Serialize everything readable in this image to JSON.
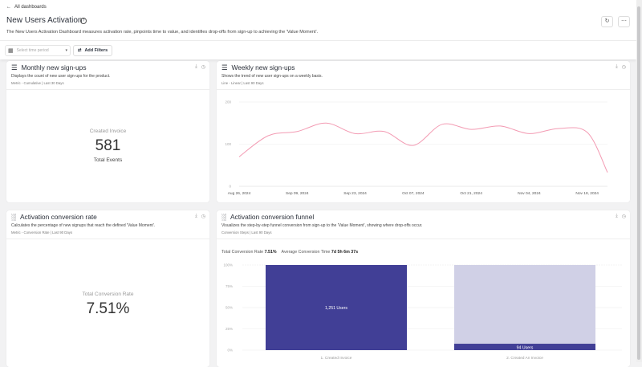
{
  "header": {
    "back_label": "All dashboards",
    "title": "New Users Activation",
    "description": "The New Users Activation Dashboard measures activation rate, pinpoints time to value, and identifies drop-offs from sign-up to achieving the 'Value Moment'."
  },
  "filters": {
    "time_placeholder": "Select time period",
    "add_filters_label": "Add Filters"
  },
  "cards": {
    "monthly": {
      "title": "Monthly new sign-ups",
      "description": "Displays the count of new user sign-ups for the product.",
      "meta": "Metric - Cumulative | Last 30 Days",
      "metric_label": "Created Invoice",
      "metric_value": "581",
      "metric_sub": "Total Events"
    },
    "weekly": {
      "title": "Weekly new sign-ups",
      "description": "Shows the trend of new user sign-ups on a weekly basis.",
      "meta": "Line - Linear | Last 90 Days"
    },
    "rate": {
      "title": "Activation conversion rate",
      "description": "Calculates the percentage of new signups that reach the defined 'Value Moment'.",
      "meta": "Metric - Conversion Rate | Last 90 Days",
      "metric_label": "Total Conversion Rate",
      "metric_value": "7.51%"
    },
    "funnel": {
      "title": "Activation conversion funnel",
      "description": "Visualizes the step-by-step funnel conversion from sign-up to the 'Value Moment', showing where drop-offs occur.",
      "meta": "Conversion Steps | Last 90 Days",
      "total_label": "Total Conversion Rate",
      "total_value": "7.51%",
      "avg_label": "Average Conversion Time",
      "avg_value": "7d 5h 6m 37s"
    }
  },
  "chart_data": [
    {
      "type": "line",
      "title": "Weekly new sign-ups",
      "ylim": [
        0,
        200
      ],
      "yticks": [
        "0",
        "100",
        "200"
      ],
      "grid": true,
      "color": "#f39bb3",
      "x": [
        "Aug 26, 2024",
        "Sep 02, 2024",
        "Sep 09, 2024",
        "Sep 16, 2024",
        "Sep 23, 2024",
        "Sep 30, 2024",
        "Oct 07, 2024",
        "Oct 14, 2024",
        "Oct 21, 2024",
        "Oct 28, 2024",
        "Nov 04, 2024",
        "Nov 11, 2024",
        "Nov 18, 2024",
        "Nov 25, 2024"
      ],
      "xticks": [
        "Aug 26, 2024",
        "Sep 09, 2024",
        "Sep 23, 2024",
        "Oct 07, 2024",
        "Oct 21, 2024",
        "Nov 04, 2024",
        "Nov 18, 2024"
      ],
      "values": [
        70,
        120,
        130,
        150,
        125,
        130,
        97,
        147,
        135,
        143,
        125,
        137,
        128,
        33
      ]
    },
    {
      "type": "bar",
      "title": "Activation conversion funnel",
      "categories": [
        "1. Created Invoice",
        "2. Created An Invoice"
      ],
      "values_percent": [
        100,
        7.51
      ],
      "labels": [
        "1,251 Users",
        "94 Users"
      ],
      "yticks": [
        "0%",
        "25%",
        "50%",
        "75%",
        "100%"
      ],
      "ylim": [
        0,
        100
      ],
      "colors": {
        "bar": "#413f96",
        "remainder": "#d0d0e6"
      }
    }
  ]
}
